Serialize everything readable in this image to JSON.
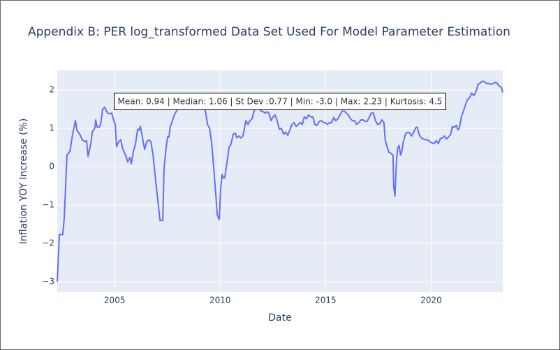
{
  "chart_data": {
    "type": "line",
    "title": "Appendix B: PER log_transformed Data Set Used For Model Parameter Estimation",
    "x_label": "Date",
    "y_label": "Inflation YOY Increase (%)",
    "annotation": "Mean: 0.94 | Median: 1.06 | St Dev :0.77 | Min: -3.0 | Max: 2.23 | Kurtosis: 4.5",
    "color": "#636efa",
    "grid": true,
    "xlim": [
      2002.28,
      2023.39
    ],
    "xticks": [
      2005,
      2010,
      2015,
      2020
    ],
    "ylim": [
      -3.27,
      2.51
    ],
    "yticks": [
      {
        "value": -3,
        "label": "−3"
      },
      {
        "value": -2,
        "label": "−2"
      },
      {
        "value": -1,
        "label": "−1"
      },
      0,
      1,
      2
    ],
    "x": [
      2002.28,
      2002.38,
      2002.54,
      2002.61,
      2002.74,
      2002.88,
      2003.01,
      2003.14,
      2003.21,
      2003.34,
      2003.47,
      2003.6,
      2003.67,
      2003.74,
      2003.87,
      2003.94,
      2004.07,
      2004.1,
      2004.17,
      2004.27,
      2004.34,
      2004.43,
      2004.53,
      2004.66,
      2004.8,
      2004.86,
      2004.96,
      2005.03,
      2005.09,
      2005.19,
      2005.29,
      2005.39,
      2005.52,
      2005.62,
      2005.72,
      2005.79,
      2005.89,
      2005.99,
      2006.09,
      2006.15,
      2006.22,
      2006.32,
      2006.42,
      2006.52,
      2006.62,
      2006.72,
      2006.82,
      2006.95,
      2007.08,
      2007.15,
      2007.28,
      2007.34,
      2007.44,
      2007.51,
      2007.57,
      2007.64,
      2007.74,
      2007.83,
      2007.93,
      2008.04,
      2008.17,
      2008.44,
      2008.7,
      2008.97,
      2009.16,
      2009.3,
      2009.4,
      2009.5,
      2009.6,
      2009.69,
      2009.79,
      2009.86,
      2009.96,
      2010.02,
      2010.09,
      2010.16,
      2010.22,
      2010.32,
      2010.42,
      2010.52,
      2010.62,
      2010.72,
      2010.79,
      2010.89,
      2010.98,
      2011.08,
      2011.22,
      2011.32,
      2011.41,
      2011.51,
      2011.61,
      2011.71,
      2011.81,
      2011.91,
      2012.01,
      2012.11,
      2012.21,
      2012.31,
      2012.41,
      2012.51,
      2012.6,
      2012.7,
      2012.8,
      2012.9,
      2013.0,
      2013.1,
      2013.2,
      2013.3,
      2013.4,
      2013.5,
      2013.6,
      2013.7,
      2013.8,
      2013.89,
      2013.99,
      2014.09,
      2014.19,
      2014.29,
      2014.39,
      2014.49,
      2014.59,
      2014.69,
      2014.79,
      2014.89,
      2014.98,
      2015.08,
      2015.18,
      2015.28,
      2015.38,
      2015.48,
      2015.58,
      2015.68,
      2015.78,
      2015.88,
      2015.97,
      2016.07,
      2016.17,
      2016.27,
      2016.37,
      2016.47,
      2016.57,
      2016.67,
      2016.77,
      2016.87,
      2016.96,
      2017.06,
      2017.16,
      2017.26,
      2017.36,
      2017.46,
      2017.56,
      2017.66,
      2017.76,
      2017.82,
      2017.92,
      2017.99,
      2018.09,
      2018.19,
      2018.22,
      2018.28,
      2018.35,
      2018.41,
      2018.48,
      2018.55,
      2018.61,
      2018.68,
      2018.78,
      2018.88,
      2018.98,
      2019.07,
      2019.17,
      2019.27,
      2019.34,
      2019.44,
      2019.54,
      2019.64,
      2019.74,
      2019.84,
      2019.94,
      2020.04,
      2020.14,
      2020.24,
      2020.34,
      2020.43,
      2020.53,
      2020.63,
      2020.73,
      2020.83,
      2020.93,
      2021.0,
      2021.09,
      2021.19,
      2021.26,
      2021.33,
      2021.43,
      2021.53,
      2021.63,
      2021.72,
      2021.82,
      2021.92,
      2022.02,
      2022.12,
      2022.22,
      2022.32,
      2022.42,
      2022.52,
      2022.62,
      2022.72,
      2022.82,
      2022.92,
      2023.02,
      2023.12,
      2023.22,
      2023.32,
      2023.39
    ],
    "values": [
      -3.0,
      -1.77,
      -1.77,
      -1.35,
      0.3,
      0.4,
      0.85,
      1.2,
      0.95,
      0.85,
      0.7,
      0.65,
      0.68,
      0.27,
      0.6,
      0.9,
      1.02,
      1.22,
      1.03,
      1.03,
      1.12,
      1.5,
      1.55,
      1.4,
      1.38,
      1.4,
      1.2,
      1.1,
      0.52,
      0.65,
      0.7,
      0.45,
      0.3,
      0.12,
      0.24,
      0.08,
      0.4,
      0.6,
      0.98,
      0.95,
      1.05,
      0.75,
      0.45,
      0.65,
      0.7,
      0.65,
      0.3,
      -0.4,
      -1.05,
      -1.4,
      -1.4,
      -0.05,
      0.5,
      0.78,
      0.77,
      1.05,
      1.2,
      1.35,
      1.45,
      1.55,
      1.7,
      1.8,
      1.8,
      1.75,
      1.6,
      1.45,
      1.1,
      1.0,
      0.6,
      0.0,
      -0.7,
      -1.25,
      -1.38,
      -0.6,
      -0.2,
      -0.3,
      -0.28,
      0.1,
      0.5,
      0.6,
      0.85,
      0.87,
      0.75,
      0.8,
      0.75,
      0.8,
      1.2,
      1.1,
      1.2,
      1.25,
      1.45,
      1.6,
      1.65,
      1.45,
      1.45,
      1.4,
      1.43,
      1.4,
      1.2,
      1.3,
      1.35,
      1.2,
      0.98,
      1.0,
      0.85,
      0.9,
      0.82,
      0.95,
      1.1,
      1.15,
      1.05,
      1.1,
      1.15,
      1.1,
      1.3,
      1.25,
      1.35,
      1.3,
      1.3,
      1.1,
      1.08,
      1.18,
      1.2,
      1.15,
      1.15,
      1.1,
      1.15,
      1.15,
      1.28,
      1.2,
      1.25,
      1.35,
      1.45,
      1.45,
      1.4,
      1.35,
      1.25,
      1.2,
      1.2,
      1.1,
      1.15,
      1.22,
      1.22,
      1.18,
      1.18,
      1.28,
      1.4,
      1.4,
      1.2,
      1.1,
      1.12,
      1.22,
      1.15,
      0.7,
      0.5,
      0.38,
      0.35,
      0.3,
      -0.5,
      -0.77,
      0.1,
      0.48,
      0.55,
      0.3,
      0.4,
      0.65,
      0.85,
      0.9,
      0.88,
      0.8,
      0.9,
      1.02,
      1.03,
      0.82,
      0.75,
      0.72,
      0.7,
      0.7,
      0.65,
      0.62,
      0.6,
      0.68,
      0.6,
      0.73,
      0.75,
      0.8,
      0.72,
      0.78,
      0.85,
      1.05,
      1.02,
      1.08,
      0.96,
      1.0,
      1.3,
      1.45,
      1.62,
      1.75,
      1.8,
      1.92,
      1.85,
      1.95,
      2.15,
      2.18,
      2.23,
      2.22,
      2.17,
      2.17,
      2.15,
      2.16,
      2.2,
      2.18,
      2.1,
      2.08,
      1.93
    ]
  }
}
